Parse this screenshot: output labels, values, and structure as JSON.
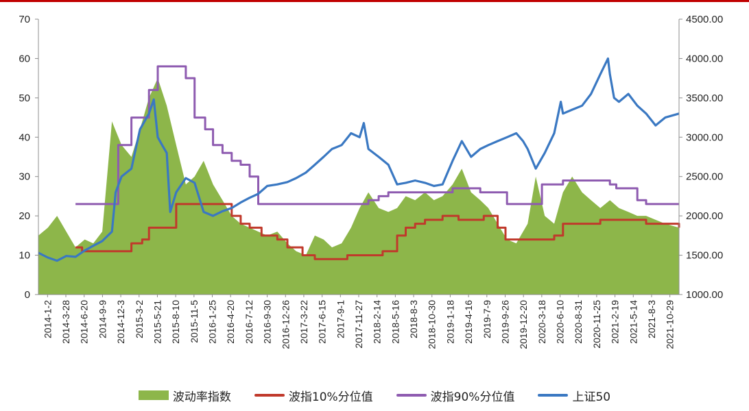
{
  "colors": {
    "area": "#8db64a",
    "p10": "#c0392b",
    "p90": "#8e5bb0",
    "sz50": "#3a78c2",
    "axis": "#8c8c8c",
    "top_rule": "#c00000"
  },
  "chart_data": {
    "type": "area",
    "title": "",
    "xlabel": "",
    "ylabel": "",
    "ylim_left": [
      0,
      70
    ],
    "ylim_right": [
      1000,
      4500
    ],
    "left_ticks": [
      "0",
      "10",
      "20",
      "30",
      "40",
      "50",
      "60",
      "70"
    ],
    "right_ticks": [
      "1000.00",
      "1500.00",
      "2000.00",
      "2500.00",
      "3000.00",
      "3500.00",
      "4000.00",
      "4500.00"
    ],
    "x_tick_labels": [
      "2014-1-2",
      "2014-3-28",
      "2014-6-20",
      "2014-9-9",
      "2014-12-3",
      "2015-3-2",
      "2015-5-21",
      "2015-8-10",
      "2015-11-5",
      "2016-1-25",
      "2016-4-20",
      "2016-7-12",
      "2016-9-30",
      "2016-12-26",
      "2017-3-22",
      "2017-6-15",
      "2017-9-1",
      "2017-11-27",
      "2018-2-14",
      "2018-5-16",
      "2018-8-3",
      "2018-10-30",
      "2019-1-18",
      "2019-4-16",
      "2019-7-9",
      "2019-9-26",
      "2019-12-20",
      "2020-3-18",
      "2020-6-10",
      "2020-8-31",
      "2020-11-25",
      "2021-2-19",
      "2021-5-14",
      "2021-8-3",
      "2021-10-29"
    ],
    "grid": false,
    "legend_position": "bottom",
    "series": [
      {
        "name": "波动率指数",
        "axis": "left",
        "style": "area",
        "x": [
          "2014-1-2",
          "2014-2-14",
          "2014-3-28",
          "2014-5-9",
          "2014-6-20",
          "2014-8-1",
          "2014-9-9",
          "2014-10-20",
          "2014-12-3",
          "2015-1-16",
          "2015-3-2",
          "2015-4-10",
          "2015-5-21",
          "2015-6-30",
          "2015-8-10",
          "2015-9-22",
          "2015-11-5",
          "2015-12-15",
          "2016-1-25",
          "2016-3-8",
          "2016-4-20",
          "2016-6-1",
          "2016-7-12",
          "2016-8-22",
          "2016-9-30",
          "2016-11-10",
          "2016-12-26",
          "2017-2-10",
          "2017-3-22",
          "2017-5-5",
          "2017-6-15",
          "2017-7-25",
          "2017-9-1",
          "2017-10-15",
          "2017-11-27",
          "2018-1-5",
          "2018-2-14",
          "2018-4-2",
          "2018-5-16",
          "2018-6-25",
          "2018-8-3",
          "2018-9-15",
          "2018-10-30",
          "2018-12-10",
          "2019-1-18",
          "2019-3-5",
          "2019-4-16",
          "2019-5-28",
          "2019-7-9",
          "2019-8-15",
          "2019-9-26",
          "2019-11-8",
          "2019-12-20",
          "2020-2-10",
          "2020-3-18",
          "2020-4-28",
          "2020-6-10",
          "2020-7-20",
          "2020-8-31",
          "2020-10-15",
          "2020-11-25",
          "2021-1-6",
          "2021-2-19",
          "2021-4-1",
          "2021-5-14",
          "2021-6-24",
          "2021-8-3",
          "2021-9-15",
          "2021-10-29",
          "2021-12-31"
        ],
        "values": [
          15,
          17,
          20,
          16,
          12,
          14,
          13,
          16,
          44,
          38,
          35,
          42,
          50,
          55,
          48,
          38,
          28,
          30,
          34,
          28,
          24,
          20,
          18,
          17,
          16,
          15,
          16,
          13,
          11,
          10,
          15,
          14,
          12,
          13,
          17,
          22,
          26,
          22,
          21,
          22,
          25,
          24,
          26,
          24,
          25,
          28,
          32,
          26,
          24,
          22,
          18,
          14,
          13,
          18,
          30,
          20,
          18,
          26,
          30,
          26,
          24,
          22,
          24,
          22,
          21,
          20,
          20,
          19,
          18,
          17
        ]
      },
      {
        "name": "波指10%分位值",
        "axis": "left",
        "style": "step",
        "x": [
          "2014-6-20",
          "2014-7-20",
          "2014-12-3",
          "2015-3-2",
          "2015-4-20",
          "2015-5-21",
          "2015-9-22",
          "2016-2-20",
          "2016-4-20",
          "2016-6-1",
          "2016-7-12",
          "2016-8-22",
          "2016-10-15",
          "2016-12-26",
          "2017-2-10",
          "2017-4-20",
          "2017-6-15",
          "2017-9-1",
          "2017-11-10",
          "2018-3-15",
          "2018-4-20",
          "2018-6-25",
          "2018-8-3",
          "2018-9-15",
          "2018-10-30",
          "2018-12-10",
          "2019-1-18",
          "2019-4-1",
          "2019-6-15",
          "2019-7-25",
          "2019-9-26",
          "2019-11-1",
          "2019-12-1",
          "2020-5-10",
          "2020-6-10",
          "2020-7-20",
          "2020-11-25",
          "2021-1-6",
          "2021-3-1",
          "2021-8-3",
          "2021-12-15",
          "2021-12-31"
        ],
        "values": [
          12,
          11,
          11,
          13,
          14,
          17,
          23,
          23,
          23,
          20,
          18,
          17,
          15,
          14,
          12,
          10,
          9,
          9,
          10,
          10,
          11,
          15,
          17,
          18,
          19,
          19,
          20,
          19,
          19,
          20,
          17,
          14,
          14,
          14,
          15,
          18,
          18,
          19,
          19,
          18,
          18,
          17
        ]
      },
      {
        "name": "波指90%分位值",
        "axis": "left",
        "style": "step",
        "x": [
          "2014-6-20",
          "2014-12-3",
          "2015-1-1",
          "2015-3-2",
          "2015-5-21",
          "2015-6-30",
          "2015-8-10",
          "2015-11-5",
          "2015-12-15",
          "2016-2-1",
          "2016-3-8",
          "2016-4-20",
          "2016-6-1",
          "2016-7-12",
          "2016-8-22",
          "2016-9-30",
          "2017-9-1",
          "2018-2-14",
          "2018-4-2",
          "2018-5-16",
          "2018-10-30",
          "2019-1-18",
          "2019-3-5",
          "2019-5-28",
          "2019-7-9",
          "2019-9-26",
          "2019-11-8",
          "2020-3-18",
          "2020-4-15",
          "2020-6-10",
          "2020-7-20",
          "2020-9-15",
          "2020-11-25",
          "2021-1-6",
          "2021-2-19",
          "2021-3-20",
          "2021-6-24",
          "2021-8-3",
          "2021-12-31"
        ],
        "values": [
          23,
          23,
          38,
          45,
          52,
          58,
          58,
          55,
          45,
          42,
          38,
          36,
          34,
          33,
          30,
          23,
          23,
          24,
          25,
          26,
          26,
          26,
          27,
          27,
          26,
          26,
          23,
          23,
          28,
          28,
          29,
          29,
          29,
          29,
          28,
          27,
          24,
          23,
          23
        ]
      },
      {
        "name": "上证50",
        "axis": "right",
        "style": "line",
        "x": [
          "2014-1-2",
          "2014-2-14",
          "2014-3-28",
          "2014-5-9",
          "2014-6-20",
          "2014-8-1",
          "2014-9-9",
          "2014-10-20",
          "2014-12-3",
          "2014-12-20",
          "2015-1-16",
          "2015-3-2",
          "2015-4-10",
          "2015-5-21",
          "2015-6-12",
          "2015-6-30",
          "2015-7-20",
          "2015-8-10",
          "2015-8-26",
          "2015-9-22",
          "2015-11-5",
          "2015-12-15",
          "2016-1-25",
          "2016-3-8",
          "2016-4-20",
          "2016-6-1",
          "2016-7-12",
          "2016-8-22",
          "2016-9-30",
          "2016-11-10",
          "2016-12-26",
          "2017-2-10",
          "2017-3-22",
          "2017-5-5",
          "2017-6-15",
          "2017-7-25",
          "2017-9-1",
          "2017-10-15",
          "2017-11-27",
          "2018-1-5",
          "2018-1-24",
          "2018-2-14",
          "2018-4-2",
          "2018-5-16",
          "2018-6-25",
          "2018-8-3",
          "2018-9-15",
          "2018-10-30",
          "2018-12-10",
          "2019-1-18",
          "2019-3-5",
          "2019-4-16",
          "2019-5-28",
          "2019-7-9",
          "2019-8-15",
          "2019-9-26",
          "2019-11-8",
          "2019-12-20",
          "2020-1-20",
          "2020-2-10",
          "2020-3-18",
          "2020-4-28",
          "2020-6-10",
          "2020-7-10",
          "2020-7-20",
          "2020-8-31",
          "2020-10-15",
          "2020-11-25",
          "2021-1-6",
          "2021-2-10",
          "2021-2-19",
          "2021-3-10",
          "2021-4-1",
          "2021-5-14",
          "2021-6-24",
          "2021-8-3",
          "2021-9-15",
          "2021-10-29",
          "2021-12-31"
        ],
        "values": [
          1530,
          1470,
          1430,
          1490,
          1480,
          1560,
          1620,
          1680,
          1800,
          2300,
          2500,
          2600,
          3100,
          3300,
          3480,
          3000,
          2900,
          2800,
          2050,
          2300,
          2480,
          2420,
          2050,
          2000,
          2060,
          2100,
          2170,
          2230,
          2280,
          2380,
          2400,
          2430,
          2480,
          2550,
          2650,
          2750,
          2850,
          2900,
          3050,
          3000,
          3180,
          2850,
          2750,
          2650,
          2400,
          2420,
          2450,
          2420,
          2380,
          2400,
          2700,
          2950,
          2750,
          2850,
          2900,
          2950,
          3000,
          3050,
          2950,
          2850,
          2600,
          2800,
          3050,
          3450,
          3300,
          3350,
          3400,
          3550,
          3800,
          4000,
          3800,
          3500,
          3450,
          3550,
          3400,
          3300,
          3150,
          3250,
          3300
        ]
      }
    ]
  },
  "legend": [
    {
      "label": "波动率指数",
      "kind": "area",
      "color": "#8db64a"
    },
    {
      "label": "波指10%分位值",
      "kind": "line",
      "color": "#c0392b"
    },
    {
      "label": "波指90%分位值",
      "kind": "line",
      "color": "#8e5bb0"
    },
    {
      "label": "上证50",
      "kind": "line",
      "color": "#3a78c2"
    }
  ]
}
